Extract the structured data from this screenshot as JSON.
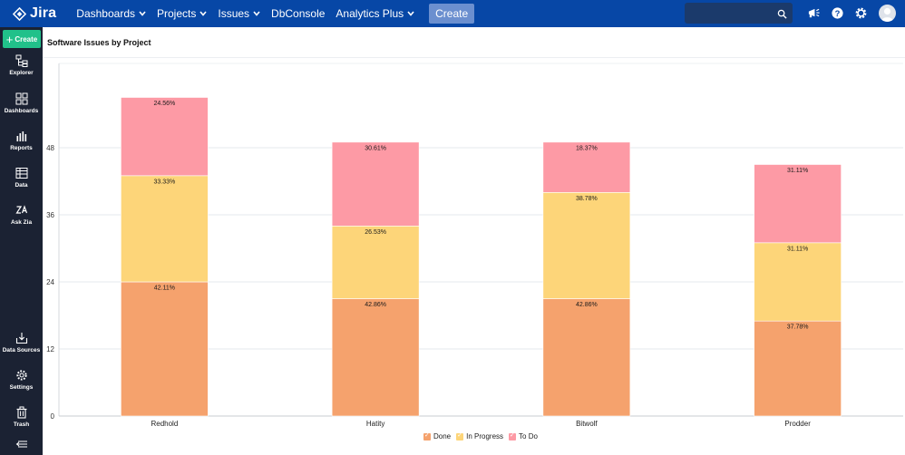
{
  "app": {
    "logo_text": "Jira"
  },
  "nav": {
    "items": [
      {
        "label": "Dashboards",
        "has_menu": true
      },
      {
        "label": "Projects",
        "has_menu": true
      },
      {
        "label": "Issues",
        "has_menu": true
      },
      {
        "label": "DbConsole",
        "has_menu": false
      },
      {
        "label": "Analytics Plus",
        "has_menu": true
      }
    ],
    "create_label": "Create",
    "search_placeholder": ""
  },
  "icons": {
    "top": [
      "search-icon",
      "megaphone-icon",
      "help-icon",
      "settings-gear-icon",
      "avatar-icon"
    ]
  },
  "sidebar": {
    "create_label": "Create",
    "items": [
      {
        "label": "Explorer",
        "icon": "explorer-icon"
      },
      {
        "label": "Dashboards",
        "icon": "dashboards-icon"
      },
      {
        "label": "Reports",
        "icon": "reports-icon"
      },
      {
        "label": "Data",
        "icon": "data-table-icon"
      },
      {
        "label": "Ask Zia",
        "icon": "ask-zia-icon"
      },
      {
        "label": "Data Sources",
        "icon": "data-sources-icon"
      },
      {
        "label": "Settings",
        "icon": "settings-icon"
      },
      {
        "label": "Trash",
        "icon": "trash-icon"
      }
    ],
    "collapse_icon": "collapse-icon"
  },
  "report": {
    "title": "Software Issues by Project"
  },
  "colors": {
    "nav_bg": "#0747a6",
    "sidebar_bg": "#1b2233",
    "create_green": "#21c18a",
    "done": "#f5a26d",
    "in_progress": "#fdd579",
    "to_do": "#fd9aa5"
  },
  "chart_data": {
    "type": "bar",
    "stacked": true,
    "categories": [
      "Redhold",
      "Hatity",
      "Bitwolf",
      "Prodder"
    ],
    "y_ticks": [
      0,
      12,
      24,
      36,
      48
    ],
    "ylim": [
      0,
      60
    ],
    "grid": true,
    "legend_position": "bottom-center",
    "series": [
      {
        "name": "Done",
        "color": "#f5a26d",
        "values": [
          24,
          21,
          21,
          17
        ],
        "labels": [
          "42.11%",
          "42.86%",
          "42.86%",
          "37.78%"
        ]
      },
      {
        "name": "In Progress",
        "color": "#fdd579",
        "values": [
          19,
          13,
          19,
          14
        ],
        "labels": [
          "33.33%",
          "26.53%",
          "38.78%",
          "31.11%"
        ]
      },
      {
        "name": "To Do",
        "color": "#fd9aa5",
        "values": [
          14,
          15,
          9,
          14
        ],
        "labels": [
          "24.56%",
          "30.61%",
          "18.37%",
          "31.11%"
        ]
      }
    ]
  }
}
